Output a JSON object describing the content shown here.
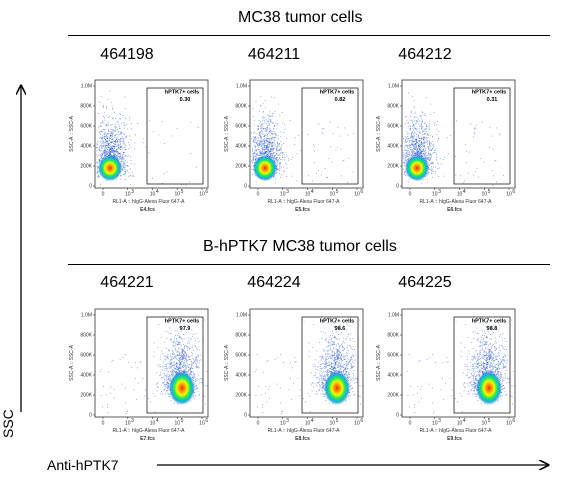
{
  "sections": [
    {
      "title": "MC38 tumor cells",
      "panels": [
        {
          "sample_id": "464198",
          "file": "E4.fcs",
          "gate_value": "0.30"
        },
        {
          "sample_id": "464211",
          "file": "E5.fcs",
          "gate_value": "0.82"
        },
        {
          "sample_id": "464212",
          "file": "E6.fcs",
          "gate_value": "0.31"
        }
      ]
    },
    {
      "title": "B-hPTK7 MC38 tumor cells",
      "panels": [
        {
          "sample_id": "464221",
          "file": "E7.fcs",
          "gate_value": "97.9"
        },
        {
          "sample_id": "464224",
          "file": "E8.fcs",
          "gate_value": "98.6"
        },
        {
          "sample_id": "464225",
          "file": "E9.fcs",
          "gate_value": "98.8"
        }
      ]
    }
  ],
  "axis_common": {
    "x_title": "RL1-A :: hIgG-Alexa Fluor   647-A",
    "y_title": "SSC-A :: SSC-A",
    "y_ticks": [
      "1.0M",
      "800K",
      "600K",
      "400K",
      "200K",
      "0"
    ],
    "x_ticks": [
      "0",
      "10",
      "10",
      "10",
      "10"
    ],
    "x_exponents": [
      "",
      "3",
      "4",
      "5",
      "6"
    ],
    "gate_name": "hPTK7+ cells"
  },
  "global_axes": {
    "y_label": "SSC",
    "x_label": "Anti-hPTK7"
  },
  "chart_data": {
    "type": "scatter",
    "title": "",
    "xlabel": "Anti-hPTK7",
    "ylabel": "SSC",
    "xscale": "log",
    "ylim": [
      0,
      1000000
    ],
    "series": [
      {
        "name": "464198",
        "gate": "hPTK7+ cells",
        "gate_percent": 0.3
      },
      {
        "name": "464211",
        "gate": "hPTK7+ cells",
        "gate_percent": 0.82
      },
      {
        "name": "464212",
        "gate": "hPTK7+ cells",
        "gate_percent": 0.31
      },
      {
        "name": "464221",
        "gate": "hPTK7+ cells",
        "gate_percent": 97.9
      },
      {
        "name": "464224",
        "gate": "hPTK7+ cells",
        "gate_percent": 98.6
      },
      {
        "name": "464225",
        "gate": "hPTK7+ cells",
        "gate_percent": 98.8
      }
    ]
  }
}
